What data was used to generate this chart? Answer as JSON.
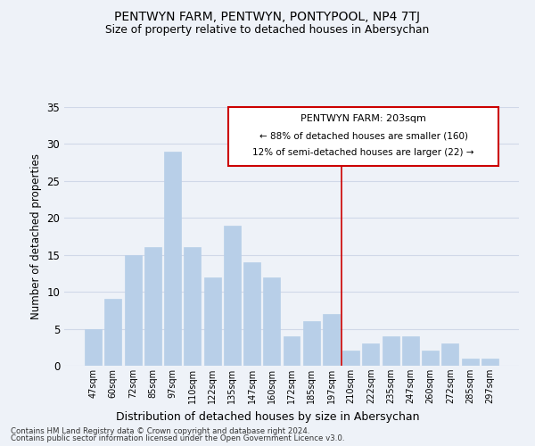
{
  "title": "PENTWYN FARM, PENTWYN, PONTYPOOL, NP4 7TJ",
  "subtitle": "Size of property relative to detached houses in Abersychan",
  "xlabel": "Distribution of detached houses by size in Abersychan",
  "ylabel": "Number of detached properties",
  "categories": [
    "47sqm",
    "60sqm",
    "72sqm",
    "85sqm",
    "97sqm",
    "110sqm",
    "122sqm",
    "135sqm",
    "147sqm",
    "160sqm",
    "172sqm",
    "185sqm",
    "197sqm",
    "210sqm",
    "222sqm",
    "235sqm",
    "247sqm",
    "260sqm",
    "272sqm",
    "285sqm",
    "297sqm"
  ],
  "values": [
    5,
    9,
    15,
    16,
    29,
    16,
    12,
    19,
    14,
    12,
    4,
    6,
    7,
    2,
    3,
    4,
    4,
    2,
    3,
    1,
    1
  ],
  "bar_color": "#b8cfe8",
  "bar_edgecolor": "#b8cfe8",
  "vline_color": "#cc0000",
  "annotation_title": "PENTWYN FARM: 203sqm",
  "annotation_line1": "← 88% of detached houses are smaller (160)",
  "annotation_line2": "12% of semi-detached houses are larger (22) →",
  "ylim": [
    0,
    35
  ],
  "yticks": [
    0,
    5,
    10,
    15,
    20,
    25,
    30,
    35
  ],
  "grid_color": "#d0d8e8",
  "background_color": "#eef2f8",
  "footnote1": "Contains HM Land Registry data © Crown copyright and database right 2024.",
  "footnote2": "Contains public sector information licensed under the Open Government Licence v3.0."
}
